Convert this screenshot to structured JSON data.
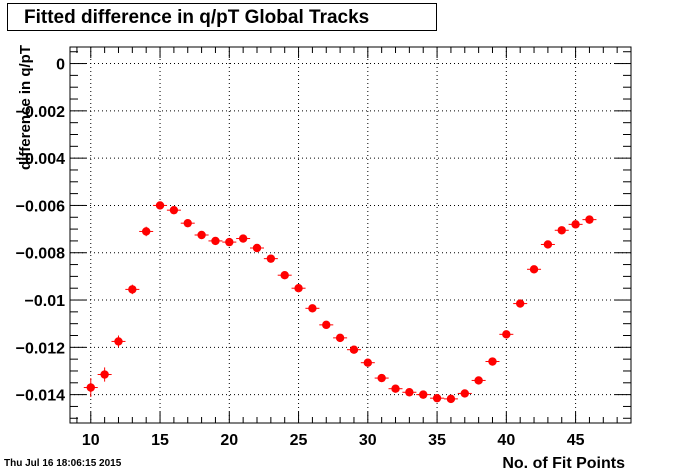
{
  "chart_data": {
    "type": "scatter",
    "title": "Fitted difference in q/pT  Global Tracks",
    "xlabel": "No. of Fit Points",
    "ylabel": "difference in q/pT",
    "xlim": [
      8.5,
      49.0
    ],
    "ylim": [
      -0.0152,
      0.0007
    ],
    "x_ticks": [
      10,
      15,
      20,
      25,
      30,
      35,
      40,
      45
    ],
    "y_ticks": [
      0,
      -0.002,
      -0.004,
      -0.006,
      -0.008,
      -0.01,
      -0.012,
      -0.014
    ],
    "y_tick_labels": [
      "0",
      "−0.002",
      "−0.004",
      "−0.006",
      "−0.008",
      "−0.01",
      "−0.012",
      "−0.014"
    ],
    "grid": true,
    "legend": false,
    "marker_color": "#ff0000",
    "series": [
      {
        "x": [
          10,
          11,
          12,
          13,
          14,
          15,
          16,
          17,
          18,
          19,
          20,
          21,
          22,
          23,
          24,
          25,
          26,
          27,
          28,
          29,
          30,
          31,
          32,
          33,
          34,
          35,
          36,
          37,
          38,
          39,
          40,
          41,
          42,
          43,
          44,
          45,
          46
        ],
        "y": [
          -0.0137,
          -0.01315,
          -0.01175,
          -0.00955,
          -0.0071,
          -0.006,
          -0.0062,
          -0.00675,
          -0.00725,
          -0.0075,
          -0.00755,
          -0.0074,
          -0.0078,
          -0.00825,
          -0.00895,
          -0.0095,
          -0.01035,
          -0.01105,
          -0.0116,
          -0.0121,
          -0.01265,
          -0.0133,
          -0.01375,
          -0.0139,
          -0.014,
          -0.01415,
          -0.01418,
          -0.01395,
          -0.0134,
          -0.0126,
          -0.01145,
          -0.01015,
          -0.0087,
          -0.00765,
          -0.00705,
          -0.0068,
          -0.0066
        ],
        "yerr": [
          0.0004,
          0.0003,
          0.00025,
          0.0002,
          0.0002,
          0.00015,
          0.00015,
          0.00013,
          0.00012,
          0.00012,
          0.00012,
          0.0001,
          0.0001,
          0.0001,
          0.0001,
          0.0001,
          0.0001,
          0.0001,
          8e-05,
          8e-05,
          8e-05,
          8e-05,
          8e-05,
          8e-05,
          8e-05,
          8e-05,
          8e-05,
          8e-05,
          8e-05,
          0.0001,
          0.0001,
          0.0001,
          0.0001,
          0.0001,
          0.0001,
          0.0001,
          0.0001
        ]
      }
    ]
  },
  "footer": {
    "date": "Thu Jul 16 18:06:15 2015"
  }
}
